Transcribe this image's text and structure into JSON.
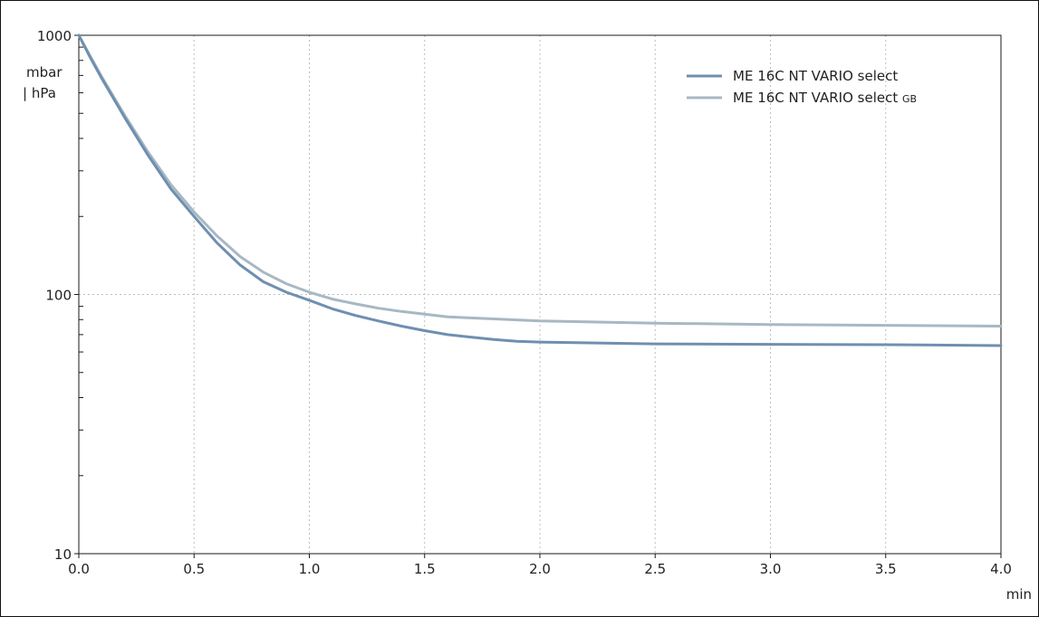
{
  "chart_data": {
    "type": "line",
    "title": "",
    "xlabel": "min",
    "ylabel": "mbar | hPa",
    "ylabel_lines": [
      "mbar",
      "| hPa"
    ],
    "xlim": [
      0,
      4
    ],
    "ylim": [
      10,
      1000
    ],
    "yscale": "log",
    "x_ticks": [
      "0.0",
      "0.5",
      "1.0",
      "1.5",
      "2.0",
      "2.5",
      "3.0",
      "3.5",
      "4.0"
    ],
    "y_ticks": [
      "10",
      "100",
      "1000"
    ],
    "grid": true,
    "legend_position": "top-right",
    "series": [
      {
        "name": "ME 16C NT VARIO select",
        "color": "#6f8fb0",
        "points": [
          [
            0.0,
            1000
          ],
          [
            0.05,
            820
          ],
          [
            0.1,
            680
          ],
          [
            0.2,
            480
          ],
          [
            0.3,
            345
          ],
          [
            0.4,
            255
          ],
          [
            0.5,
            200
          ],
          [
            0.6,
            158
          ],
          [
            0.7,
            130
          ],
          [
            0.8,
            112
          ],
          [
            0.9,
            102
          ],
          [
            1.0,
            95
          ],
          [
            1.1,
            88
          ],
          [
            1.2,
            83
          ],
          [
            1.3,
            79
          ],
          [
            1.4,
            75.5
          ],
          [
            1.5,
            72.5
          ],
          [
            1.6,
            70
          ],
          [
            1.7,
            68.5
          ],
          [
            1.8,
            67
          ],
          [
            1.9,
            66
          ],
          [
            2.0,
            65.5
          ],
          [
            2.5,
            64.5
          ],
          [
            3.0,
            64.2
          ],
          [
            3.5,
            64
          ],
          [
            4.0,
            63.5
          ]
        ]
      },
      {
        "name": "ME 16C NT VARIO select",
        "name_suffix": "GB",
        "color": "#a8b8c3",
        "points": [
          [
            0.0,
            1000
          ],
          [
            0.05,
            830
          ],
          [
            0.1,
            690
          ],
          [
            0.2,
            490
          ],
          [
            0.3,
            355
          ],
          [
            0.4,
            265
          ],
          [
            0.5,
            208
          ],
          [
            0.6,
            168
          ],
          [
            0.7,
            140
          ],
          [
            0.8,
            122
          ],
          [
            0.9,
            110
          ],
          [
            1.0,
            102
          ],
          [
            1.1,
            96
          ],
          [
            1.2,
            92
          ],
          [
            1.3,
            88.5
          ],
          [
            1.4,
            86
          ],
          [
            1.5,
            84
          ],
          [
            1.6,
            82
          ],
          [
            1.8,
            80.5
          ],
          [
            2.0,
            79
          ],
          [
            2.5,
            77.5
          ],
          [
            3.0,
            76.5
          ],
          [
            3.5,
            76
          ],
          [
            4.0,
            75.5
          ]
        ]
      }
    ]
  }
}
